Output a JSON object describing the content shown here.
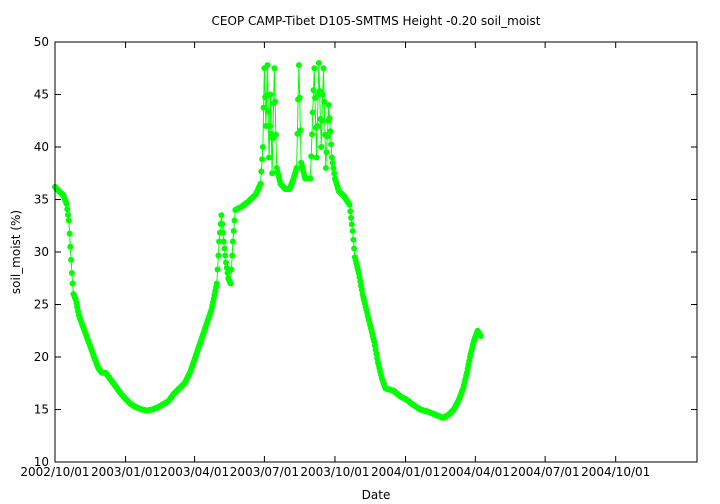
{
  "chart_data": {
    "type": "scatter",
    "title": "CEOP CAMP-Tibet D105-SMTMS Height -0.20 soil_moist",
    "xlabel": "Date",
    "ylabel": "soil_moist (%)",
    "xlim": [
      "2002-10-01",
      "2005-01-15"
    ],
    "ylim": [
      10,
      50
    ],
    "x_ticks": [
      "2002/10/01",
      "2003/01/01",
      "2003/04/01",
      "2003/07/01",
      "2003/10/01",
      "2004/01/01",
      "2004/04/01",
      "2004/07/01",
      "2004/10/01"
    ],
    "y_ticks": [
      10,
      15,
      20,
      25,
      30,
      35,
      40,
      45,
      50
    ],
    "grid": false,
    "marker_color": "#00ff00",
    "series": [
      {
        "points": [
          [
            "2002-10-01",
            36.2
          ],
          [
            "2002-10-06",
            35.8
          ],
          [
            "2002-10-12",
            35.4
          ],
          [
            "2002-10-16",
            34.6
          ],
          [
            "2002-10-19",
            33.0
          ],
          [
            "2002-10-21",
            30.5
          ],
          [
            "2002-10-23",
            28.0
          ],
          [
            "2002-10-25",
            26.0
          ],
          [
            "2002-10-28",
            25.5
          ],
          [
            "2002-11-01",
            24.0
          ],
          [
            "2002-11-06",
            23.0
          ],
          [
            "2002-11-11",
            22.0
          ],
          [
            "2002-11-16",
            21.0
          ],
          [
            "2002-11-21",
            20.0
          ],
          [
            "2002-11-26",
            19.0
          ],
          [
            "2002-12-01",
            18.5
          ],
          [
            "2002-12-06",
            18.5
          ],
          [
            "2002-12-11",
            18.0
          ],
          [
            "2002-12-16",
            17.5
          ],
          [
            "2002-12-21",
            17.0
          ],
          [
            "2002-12-26",
            16.5
          ],
          [
            "2003-01-01",
            16.0
          ],
          [
            "2003-01-08",
            15.5
          ],
          [
            "2003-01-15",
            15.2
          ],
          [
            "2003-01-22",
            15.0
          ],
          [
            "2003-01-29",
            14.9
          ],
          [
            "2003-02-05",
            15.0
          ],
          [
            "2003-02-12",
            15.2
          ],
          [
            "2003-02-19",
            15.5
          ],
          [
            "2003-02-26",
            15.8
          ],
          [
            "2003-03-05",
            16.5
          ],
          [
            "2003-03-12",
            17.0
          ],
          [
            "2003-03-19",
            17.5
          ],
          [
            "2003-03-26",
            18.5
          ],
          [
            "2003-04-02",
            20.0
          ],
          [
            "2003-04-09",
            21.5
          ],
          [
            "2003-04-16",
            23.0
          ],
          [
            "2003-04-23",
            24.5
          ],
          [
            "2003-04-30",
            27.0
          ],
          [
            "2003-05-03",
            31.0
          ],
          [
            "2003-05-06",
            33.5
          ],
          [
            "2003-05-09",
            31.0
          ],
          [
            "2003-05-12",
            29.0
          ],
          [
            "2003-05-15",
            27.5
          ],
          [
            "2003-05-18",
            27.0
          ],
          [
            "2003-05-21",
            31.0
          ],
          [
            "2003-05-24",
            34.0
          ],
          [
            "2003-06-01",
            34.3
          ],
          [
            "2003-06-10",
            34.8
          ],
          [
            "2003-06-20",
            35.5
          ],
          [
            "2003-06-26",
            36.5
          ],
          [
            "2003-06-29",
            40.0
          ],
          [
            "2003-07-01",
            47.5
          ],
          [
            "2003-07-03",
            42.0
          ],
          [
            "2003-07-05",
            47.8
          ],
          [
            "2003-07-07",
            39.0
          ],
          [
            "2003-07-09",
            45.0
          ],
          [
            "2003-07-11",
            37.5
          ],
          [
            "2003-07-14",
            47.5
          ],
          [
            "2003-07-17",
            38.0
          ],
          [
            "2003-07-22",
            36.5
          ],
          [
            "2003-07-28",
            36.0
          ],
          [
            "2003-08-03",
            36.0
          ],
          [
            "2003-08-08",
            37.0
          ],
          [
            "2003-08-12",
            38.0
          ],
          [
            "2003-08-15",
            47.8
          ],
          [
            "2003-08-18",
            38.5
          ],
          [
            "2003-08-23",
            37.0
          ],
          [
            "2003-08-30",
            37.0
          ],
          [
            "2003-09-04",
            47.5
          ],
          [
            "2003-09-07",
            39.0
          ],
          [
            "2003-09-10",
            48.0
          ],
          [
            "2003-09-13",
            40.0
          ],
          [
            "2003-09-16",
            47.5
          ],
          [
            "2003-09-19",
            38.0
          ],
          [
            "2003-09-23",
            44.0
          ],
          [
            "2003-09-27",
            39.0
          ],
          [
            "2003-10-01",
            37.0
          ],
          [
            "2003-10-06",
            35.8
          ],
          [
            "2003-10-13",
            35.3
          ],
          [
            "2003-10-20",
            34.5
          ],
          [
            "2003-10-24",
            32.0
          ],
          [
            "2003-10-27",
            29.5
          ],
          [
            "2003-11-01",
            28.0
          ],
          [
            "2003-11-06",
            26.0
          ],
          [
            "2003-11-11",
            24.5
          ],
          [
            "2003-11-16",
            23.0
          ],
          [
            "2003-11-21",
            21.5
          ],
          [
            "2003-11-26",
            19.5
          ],
          [
            "2003-12-01",
            18.0
          ],
          [
            "2003-12-06",
            17.0
          ],
          [
            "2003-12-16",
            16.8
          ],
          [
            "2003-12-26",
            16.2
          ],
          [
            "2004-01-01",
            16.0
          ],
          [
            "2004-01-10",
            15.5
          ],
          [
            "2004-01-20",
            15.0
          ],
          [
            "2004-01-30",
            14.8
          ],
          [
            "2004-02-09",
            14.5
          ],
          [
            "2004-02-19",
            14.2
          ],
          [
            "2004-02-26",
            14.5
          ],
          [
            "2004-03-04",
            15.0
          ],
          [
            "2004-03-11",
            16.0
          ],
          [
            "2004-03-16",
            17.0
          ],
          [
            "2004-03-21",
            18.5
          ],
          [
            "2004-03-25",
            20.0
          ],
          [
            "2004-03-30",
            21.5
          ],
          [
            "2004-04-04",
            22.5
          ],
          [
            "2004-04-08",
            22.0
          ]
        ]
      }
    ]
  }
}
